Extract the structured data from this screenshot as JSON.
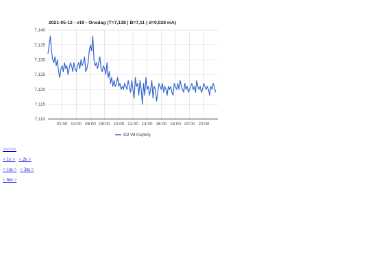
{
  "chart_data": {
    "type": "line",
    "title": "2021-05-12 - v19 - Onsdag (T=7,138 | B=7,11 | d=0,028 mA)",
    "xlabel": "",
    "ylabel": "",
    "xlim": [
      "00:00",
      "24:00"
    ],
    "ylim": [
      7.11,
      7.14
    ],
    "grid": true,
    "legend_position": "bottom",
    "y_ticks": [
      "7,140",
      "7,135",
      "7,130",
      "7,125",
      "7,120",
      "7,115",
      "7,110"
    ],
    "x_ticks": [
      "02:00",
      "04:00",
      "06:00",
      "08:00",
      "10:00",
      "12:00",
      "14:00",
      "16:00",
      "18:00",
      "20:00",
      "22:00"
    ],
    "series": [
      {
        "name": "G2 Vit 01(mA)",
        "color": "#3366cc",
        "x": [
          "00:00",
          "00:10",
          "00:20",
          "00:30",
          "00:40",
          "00:50",
          "01:00",
          "01:10",
          "01:20",
          "01:30",
          "01:40",
          "01:50",
          "02:00",
          "02:10",
          "02:20",
          "02:30",
          "02:40",
          "02:50",
          "03:00",
          "03:10",
          "03:20",
          "03:30",
          "03:40",
          "03:50",
          "04:00",
          "04:10",
          "04:20",
          "04:30",
          "04:40",
          "04:50",
          "05:00",
          "05:10",
          "05:20",
          "05:30",
          "05:40",
          "05:50",
          "06:00",
          "06:10",
          "06:20",
          "06:30",
          "06:40",
          "06:50",
          "07:00",
          "07:10",
          "07:20",
          "07:30",
          "07:40",
          "07:50",
          "08:00",
          "08:10",
          "08:20",
          "08:30",
          "08:40",
          "08:50",
          "09:00",
          "09:10",
          "09:20",
          "09:30",
          "09:40",
          "09:50",
          "10:00",
          "10:10",
          "10:20",
          "10:30",
          "10:40",
          "10:50",
          "11:00",
          "11:10",
          "11:20",
          "11:30",
          "11:40",
          "11:50",
          "12:00",
          "12:10",
          "12:20",
          "12:30",
          "12:40",
          "12:50",
          "13:00",
          "13:10",
          "13:20",
          "13:30",
          "13:40",
          "13:50",
          "14:00",
          "14:10",
          "14:20",
          "14:30",
          "14:40",
          "14:50",
          "15:00",
          "15:10",
          "15:20",
          "15:30",
          "15:40",
          "15:50",
          "16:00",
          "16:10",
          "16:20",
          "16:30",
          "16:40",
          "16:50",
          "17:00",
          "17:10",
          "17:20",
          "17:30",
          "17:40",
          "17:50",
          "18:00",
          "18:10",
          "18:20",
          "18:30",
          "18:40",
          "18:50",
          "19:00",
          "19:10",
          "19:20",
          "19:30",
          "19:40",
          "19:50",
          "20:00",
          "20:10",
          "20:20",
          "20:30",
          "20:40",
          "20:50",
          "21:00",
          "21:10",
          "21:20",
          "21:30",
          "21:40",
          "21:50",
          "22:00",
          "22:10",
          "22:20",
          "22:30",
          "22:40",
          "22:50",
          "23:00",
          "23:10",
          "23:20",
          "23:30",
          "23:40"
        ],
        "values": [
          7.132,
          7.135,
          7.138,
          7.133,
          7.13,
          7.129,
          7.131,
          7.128,
          7.13,
          7.126,
          7.124,
          7.127,
          7.128,
          7.126,
          7.129,
          7.127,
          7.128,
          7.125,
          7.127,
          7.129,
          7.128,
          7.126,
          7.129,
          7.127,
          7.126,
          7.128,
          7.129,
          7.127,
          7.13,
          7.128,
          7.129,
          7.131,
          7.126,
          7.127,
          7.129,
          7.133,
          7.135,
          7.133,
          7.138,
          7.13,
          7.128,
          7.129,
          7.127,
          7.129,
          7.131,
          7.127,
          7.126,
          7.128,
          7.127,
          7.125,
          7.129,
          7.124,
          7.126,
          7.122,
          7.124,
          7.121,
          7.123,
          7.121,
          7.122,
          7.124,
          7.121,
          7.122,
          7.12,
          7.121,
          7.12,
          7.122,
          7.121,
          7.12,
          7.123,
          7.121,
          7.119,
          7.123,
          7.12,
          7.117,
          7.124,
          7.121,
          7.122,
          7.118,
          7.123,
          7.12,
          7.115,
          7.122,
          7.118,
          7.124,
          7.12,
          7.121,
          7.118,
          7.12,
          7.123,
          7.117,
          7.121,
          7.12,
          7.116,
          7.119,
          7.122,
          7.121,
          7.12,
          7.122,
          7.119,
          7.121,
          7.12,
          7.118,
          7.121,
          7.12,
          7.121,
          7.119,
          7.118,
          7.122,
          7.121,
          7.12,
          7.122,
          7.12,
          7.123,
          7.121,
          7.12,
          7.119,
          7.122,
          7.12,
          7.121,
          7.119,
          7.12,
          7.121,
          7.122,
          7.12,
          7.121,
          7.119,
          7.123,
          7.121,
          7.12,
          7.121,
          7.119,
          7.12,
          7.122,
          7.121,
          7.12,
          7.121,
          7.12,
          7.118,
          7.121,
          7.12,
          7.122,
          7.121,
          7.119
        ]
      }
    ]
  },
  "nav": {
    "row1": [
      "<<<<<"
    ],
    "row2": [
      "< 1v >",
      "< 2v >"
    ],
    "row3": [
      "< 1m >",
      "< 3m >"
    ],
    "row4": [
      "< 6m >"
    ]
  }
}
